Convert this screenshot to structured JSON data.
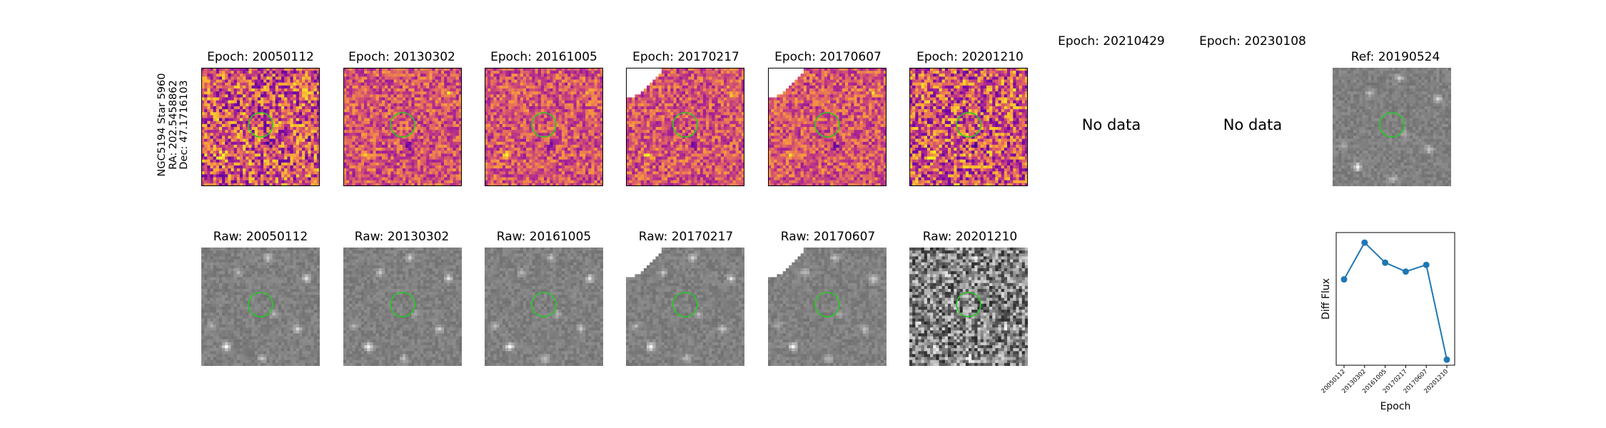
{
  "side_label": {
    "line1": "NGC5194 Star 5960",
    "line2": "RA: 202.5458862",
    "line3": "Dec: 47.1716103"
  },
  "top_titles": [
    "Epoch: 20050112",
    "Epoch: 20130302",
    "Epoch: 20161005",
    "Epoch: 20170217",
    "Epoch: 20170607",
    "Epoch: 20201210",
    "Epoch: 20210429",
    "Epoch: 20230108",
    "Ref: 20190524"
  ],
  "bottom_titles": [
    "Raw: 20050112",
    "Raw: 20130302",
    "Raw: 20161005",
    "Raw: 20170217",
    "Raw: 20170607",
    "Raw: 20201210"
  ],
  "no_data_label": "No data",
  "colors": {
    "circle": "#22cc22",
    "line": "#1f77b4"
  },
  "chart_data": {
    "type": "line",
    "title": "",
    "xlabel": "Epoch",
    "ylabel": "Diff Flux",
    "categories": [
      "20050112",
      "20130302",
      "20161005",
      "20170217",
      "20170607",
      "20201210"
    ],
    "series": [
      {
        "values": [
          0.62,
          0.95,
          0.77,
          0.69,
          0.75,
          -0.1
        ]
      }
    ],
    "ylim": [
      -0.15,
      1.04
    ],
    "yticks_shown": false,
    "grid": false
  }
}
